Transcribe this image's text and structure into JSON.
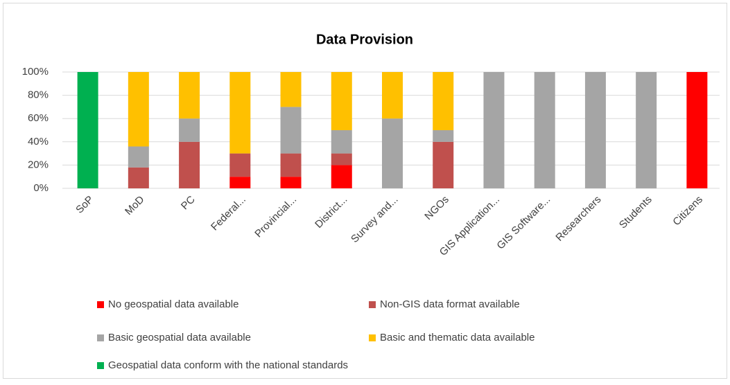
{
  "chart_data": {
    "type": "stacked_bar",
    "title": "Data Provision",
    "categories": [
      "SoP",
      "MoD",
      "PC",
      "Federal...",
      "Provincial...",
      "District...",
      "Survey and...",
      "NGOs",
      "GIS Application...",
      "GIS Software...",
      "Researchers",
      "Students",
      "Citizens"
    ],
    "series": [
      {
        "name": "No geospatial data available",
        "color": "#ff0000",
        "values": [
          0,
          0,
          0,
          10,
          10,
          20,
          0,
          0,
          0,
          0,
          0,
          0,
          100
        ]
      },
      {
        "name": "Non-GIS data format available",
        "color": "#c0504d",
        "values": [
          0,
          18,
          40,
          20,
          20,
          10,
          0,
          40,
          0,
          0,
          0,
          0,
          0
        ]
      },
      {
        "name": "Basic geospatial data available",
        "color": "#a5a5a5",
        "values": [
          0,
          18,
          20,
          0,
          40,
          20,
          60,
          10,
          100,
          100,
          100,
          100,
          0
        ]
      },
      {
        "name": "Basic and thematic data available",
        "color": "#ffc000",
        "values": [
          0,
          64,
          40,
          70,
          30,
          50,
          40,
          50,
          0,
          0,
          0,
          0,
          0
        ]
      },
      {
        "name": "Geospatial data conform with the national standards",
        "color": "#00b050",
        "values": [
          100,
          0,
          0,
          0,
          0,
          0,
          0,
          0,
          0,
          0,
          0,
          0,
          0
        ]
      }
    ],
    "ylim": [
      0,
      100
    ],
    "yticks": [
      {
        "value": 0,
        "label": "0%"
      },
      {
        "value": 20,
        "label": "20%"
      },
      {
        "value": 40,
        "label": "40%"
      },
      {
        "value": 60,
        "label": "60%"
      },
      {
        "value": 80,
        "label": "80%"
      },
      {
        "value": 100,
        "label": "100%"
      }
    ],
    "grid": true,
    "legend": "bottom"
  }
}
